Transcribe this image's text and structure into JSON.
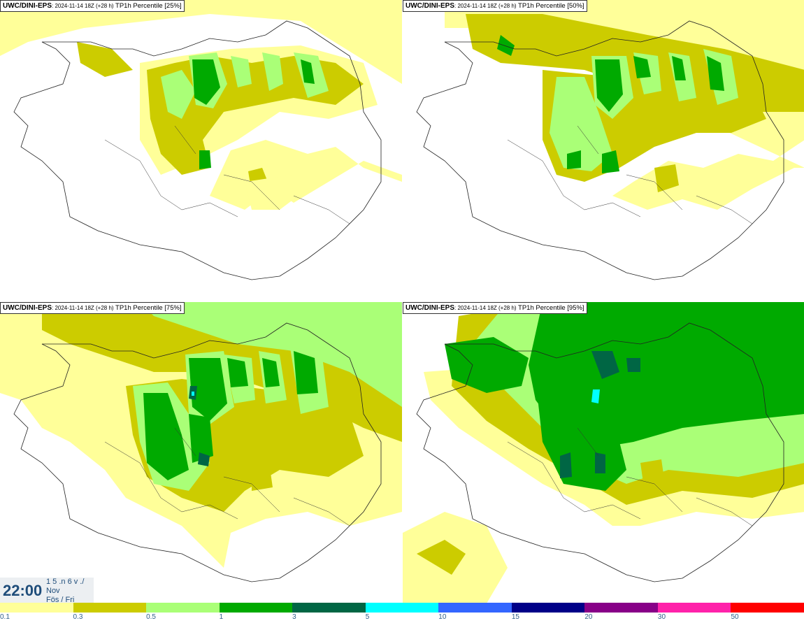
{
  "panels": [
    {
      "model": "UWC/DINI-EPS",
      "run": ": 2024-11-14 18Z (+28 h)",
      "field": " TP1h Percentile [25%]"
    },
    {
      "model": "UWC/DINI-EPS",
      "run": ": 2024-11-14 18Z (+28 h)",
      "field": " TP1h Percentile [50%]"
    },
    {
      "model": "UWC/DINI-EPS",
      "run": ": 2024-11-14 18Z (+28 h)",
      "field": " TP1h Percentile [75%]"
    },
    {
      "model": "UWC/DINI-EPS",
      "run": ": 2024-11-14 18Z (+28 h)",
      "field": " TP1h Percentile [95%]"
    }
  ],
  "valid_time": {
    "clock": "22:00",
    "date_top": "1 5 .n 6 v ./",
    "month": "Nov",
    "weekday": "Fös / Fri"
  },
  "colorbar": {
    "ticks": [
      "0.1",
      "0.3",
      "0.5",
      "1",
      "3",
      "5",
      "10",
      "15",
      "20",
      "30",
      "50"
    ],
    "colors": [
      "#ffff99",
      "#cccc00",
      "#aaff77",
      "#00aa00",
      "#006644",
      "#00ffff",
      "#3366ff",
      "#000088",
      "#880088",
      "#ff22aa",
      "#ff0000"
    ]
  },
  "map_colors": {
    "sea": "#ffff99",
    "level1": "#cccc00",
    "level2": "#aaff77",
    "level3": "#00aa00",
    "level4": "#006644",
    "level5": "#00ffff",
    "coast": "#222222"
  }
}
